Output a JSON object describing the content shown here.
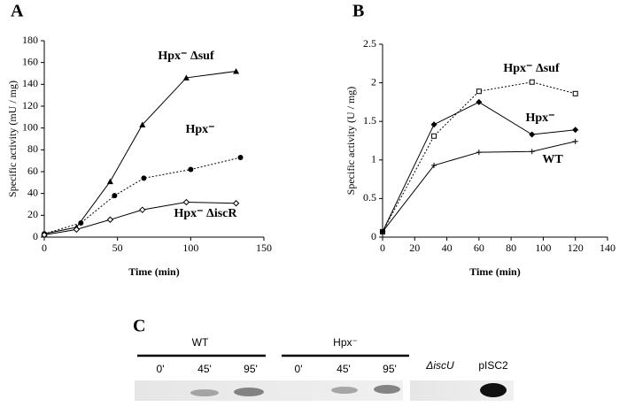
{
  "chart_data": [
    {
      "type": "line",
      "panel_label": "A",
      "x_label": "Time (min)",
      "y_label": "Specific activity (mU / mg)",
      "xlim": [
        0,
        150
      ],
      "xticks": [
        0,
        50,
        100,
        150
      ],
      "ylim": [
        0,
        180
      ],
      "yticks": [
        0,
        20,
        40,
        60,
        80,
        100,
        120,
        140,
        160,
        180
      ],
      "series": [
        {
          "name": "Hpx⁻ Δsuf",
          "color": "#000000",
          "marker": "triangle",
          "linestyle": "solid",
          "x": [
            0,
            22,
            45,
            67,
            97,
            131
          ],
          "values": [
            3,
            9,
            51,
            103,
            146,
            152
          ]
        },
        {
          "name": "Hpx⁻",
          "color": "#000000",
          "marker": "circle",
          "linestyle": "dotted",
          "x": [
            0,
            25,
            48,
            68,
            100,
            134
          ],
          "values": [
            3,
            13,
            38,
            54,
            62,
            73
          ]
        },
        {
          "name": "Hpx⁻ ΔiscR",
          "color": "#000000",
          "marker": "diamond-open",
          "linestyle": "solid",
          "x": [
            0,
            22,
            45,
            67,
            97,
            131
          ],
          "values": [
            2,
            7,
            16,
            25,
            32,
            31
          ]
        }
      ]
    },
    {
      "type": "line",
      "panel_label": "B",
      "x_label": "Time (min)",
      "y_label": "Specific activity (U / mg)",
      "xlim": [
        0,
        140
      ],
      "xticks": [
        0,
        20,
        40,
        60,
        80,
        100,
        120,
        140
      ],
      "ylim": [
        0,
        2.5
      ],
      "yticks": [
        0,
        0.5,
        1,
        1.5,
        2,
        2.5
      ],
      "series": [
        {
          "name": "Hpx⁻ Δsuf",
          "color": "#000000",
          "marker": "square-open",
          "linestyle": "dotted",
          "x": [
            0,
            32,
            60,
            93,
            120
          ],
          "values": [
            0.07,
            1.31,
            1.89,
            2.01,
            1.86
          ]
        },
        {
          "name": "Hpx⁻",
          "color": "#000000",
          "marker": "diamond",
          "linestyle": "solid",
          "x": [
            0,
            32,
            60,
            93,
            120
          ],
          "values": [
            0.07,
            1.46,
            1.75,
            1.33,
            1.39
          ]
        },
        {
          "name": "WT",
          "color": "#000000",
          "marker": "plus",
          "linestyle": "solid",
          "x": [
            0,
            32,
            60,
            93,
            120
          ],
          "values": [
            0.07,
            0.93,
            1.1,
            1.11,
            1.24
          ]
        }
      ]
    }
  ],
  "gel": {
    "panel_label": "C",
    "groups": [
      {
        "name": "WT",
        "lanes": [
          "0'",
          "45'",
          "95'"
        ]
      },
      {
        "name": "Hpx⁻",
        "lanes": [
          "0'",
          "45'",
          "95'"
        ]
      }
    ],
    "controls": [
      "ΔiscU",
      "pISC2"
    ]
  }
}
